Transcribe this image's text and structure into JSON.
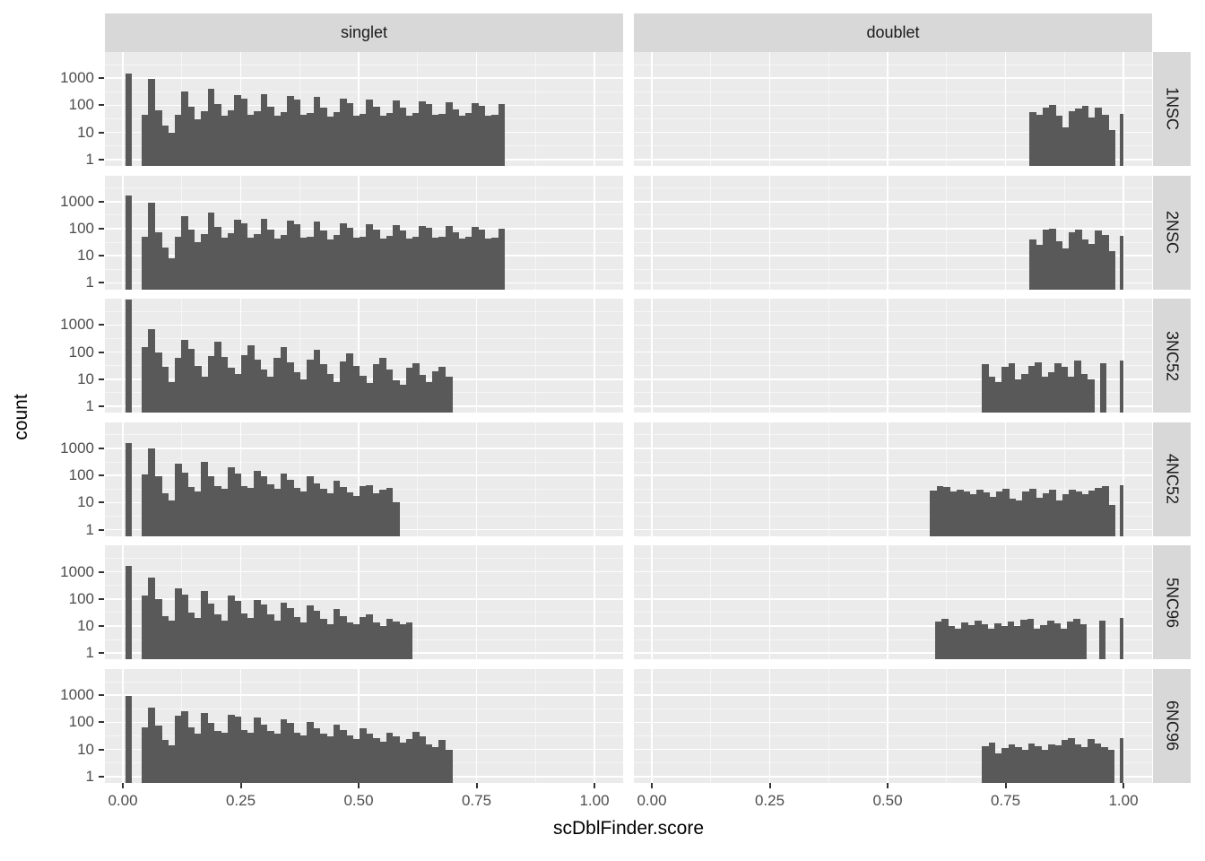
{
  "chart_data": {
    "type": "bar",
    "subtype": "faceted-histogram-log-y",
    "title": "",
    "xlabel": "scDblFinder.score",
    "ylabel": "count",
    "x_tick_labels": [
      "0.00",
      "0.25",
      "0.50",
      "0.75",
      "1.00"
    ],
    "x_tick_values": [
      0,
      0.25,
      0.5,
      0.75,
      1.0
    ],
    "y_tick_labels": [
      "1000",
      "100",
      "10",
      "1"
    ],
    "y_tick_values": [
      1000,
      100,
      10,
      1
    ],
    "y_scale": "log10",
    "grid": "on",
    "legend": "none",
    "col_facets": [
      "singlet",
      "doublet"
    ],
    "row_facets": [
      "1NSC",
      "2NSC",
      "3NC52",
      "4NC52",
      "5NC96",
      "6NC96"
    ],
    "bar_color": "#595959",
    "panel_bg": "#EBEBEB",
    "strip_bg": "#D8D8D8",
    "bin_width": 0.014,
    "panels": [
      {
        "row": "1NSC",
        "col": "singlet",
        "start": 0.04,
        "values": [
          45,
          930,
          65,
          18,
          10,
          45,
          330,
          90,
          30,
          60,
          420,
          110,
          40,
          65,
          230,
          170,
          45,
          60,
          250,
          90,
          40,
          55,
          220,
          160,
          45,
          50,
          200,
          80,
          38,
          55,
          170,
          120,
          42,
          48,
          160,
          90,
          40,
          52,
          150,
          80,
          42,
          50,
          140,
          110,
          45,
          48,
          130,
          70,
          40,
          50,
          120,
          95,
          42,
          46,
          110
        ],
        "extra_bars": [
          {
            "x": 0.006,
            "w": 0.013,
            "count": 1450
          }
        ]
      },
      {
        "row": "1NSC",
        "col": "doublet",
        "start": 0.8,
        "values": [
          55,
          45,
          85,
          100,
          40,
          15,
          60,
          75,
          95,
          35,
          80,
          45,
          12
        ],
        "extra_bars": [
          {
            "x": 0.993,
            "w": 0.007,
            "count": 48
          }
        ]
      },
      {
        "row": "2NSC",
        "col": "singlet",
        "start": 0.04,
        "values": [
          50,
          900,
          75,
          20,
          8,
          50,
          300,
          95,
          32,
          65,
          380,
          120,
          45,
          70,
          210,
          160,
          48,
          65,
          230,
          95,
          42,
          58,
          200,
          150,
          48,
          52,
          190,
          85,
          40,
          58,
          160,
          110,
          45,
          50,
          150,
          95,
          42,
          54,
          140,
          85,
          44,
          52,
          130,
          105,
          46,
          50,
          125,
          75,
          42,
          52,
          115,
          90,
          44,
          48,
          100
        ],
        "extra_bars": [
          {
            "x": 0.006,
            "w": 0.013,
            "count": 1700
          }
        ]
      },
      {
        "row": "2NSC",
        "col": "doublet",
        "start": 0.8,
        "values": [
          40,
          25,
          90,
          100,
          35,
          18,
          75,
          95,
          40,
          28,
          85,
          60,
          15
        ],
        "extra_bars": [
          {
            "x": 0.993,
            "w": 0.007,
            "count": 55
          }
        ]
      },
      {
        "row": "3NC52",
        "col": "singlet",
        "start": 0.04,
        "values": [
          150,
          700,
          95,
          28,
          8,
          60,
          280,
          130,
          32,
          12,
          70,
          250,
          65,
          26,
          16,
          80,
          180,
          52,
          22,
          12,
          62,
          150,
          42,
          18,
          10,
          52,
          120,
          36,
          16,
          8,
          46,
          90,
          30,
          13,
          7,
          36,
          62,
          22,
          9,
          6,
          26,
          40,
          14,
          8,
          20,
          28,
          12
        ],
        "extra_bars": [
          {
            "x": 0.006,
            "w": 0.013,
            "count": 9000
          }
        ]
      },
      {
        "row": "3NC52",
        "col": "doublet",
        "start": 0.7,
        "values": [
          35,
          12,
          8,
          28,
          38,
          10,
          15,
          32,
          42,
          12,
          18,
          38,
          28,
          12,
          48,
          15,
          10
        ],
        "extra_bars": [
          {
            "x": 0.95,
            "w": 0.014,
            "count": 38
          },
          {
            "x": 0.993,
            "w": 0.007,
            "count": 50
          }
        ]
      },
      {
        "row": "4NC52",
        "col": "singlet",
        "start": 0.04,
        "values": [
          110,
          1000,
          95,
          22,
          12,
          280,
          130,
          38,
          26,
          330,
          95,
          42,
          32,
          200,
          120,
          42,
          36,
          150,
          92,
          46,
          32,
          120,
          72,
          36,
          26,
          92,
          52,
          32,
          22,
          62,
          38,
          24,
          18,
          40,
          45,
          22,
          30,
          35,
          10
        ],
        "extra_bars": [
          {
            "x": 0.006,
            "w": 0.013,
            "count": 1600
          }
        ]
      },
      {
        "row": "4NC52",
        "col": "doublet",
        "start": 0.59,
        "values": [
          28,
          42,
          38,
          25,
          30,
          26,
          20,
          30,
          24,
          16,
          26,
          32,
          14,
          12,
          26,
          32,
          15,
          22,
          30,
          12,
          20,
          30,
          25,
          20,
          28,
          35,
          42,
          8
        ],
        "extra_bars": [
          {
            "x": 0.993,
            "w": 0.007,
            "count": 45
          }
        ]
      },
      {
        "row": "5NC96",
        "col": "singlet",
        "start": 0.04,
        "values": [
          130,
          600,
          95,
          24,
          16,
          250,
          140,
          32,
          20,
          200,
          65,
          27,
          16,
          130,
          82,
          30,
          20,
          92,
          62,
          27,
          16,
          72,
          46,
          22,
          14,
          56,
          36,
          18,
          12,
          42,
          24,
          14,
          12,
          22,
          26,
          14,
          10,
          18,
          15,
          12,
          14
        ],
        "extra_bars": [
          {
            "x": 0.006,
            "w": 0.013,
            "count": 1700
          }
        ]
      },
      {
        "row": "5NC96",
        "col": "doublet",
        "start": 0.6,
        "values": [
          15,
          18,
          10,
          8,
          14,
          11,
          16,
          12,
          8,
          13,
          10,
          15,
          10,
          17,
          19,
          8,
          11,
          16,
          13,
          8,
          15,
          18,
          12
        ],
        "extra_bars": [
          {
            "x": 0.948,
            "w": 0.014,
            "count": 16
          },
          {
            "x": 0.993,
            "w": 0.007,
            "count": 20
          }
        ]
      },
      {
        "row": "6NC96",
        "col": "singlet",
        "start": 0.04,
        "values": [
          65,
          350,
          75,
          22,
          14,
          180,
          250,
          65,
          38,
          220,
          95,
          48,
          42,
          185,
          160,
          52,
          42,
          150,
          85,
          48,
          38,
          130,
          92,
          42,
          32,
          105,
          62,
          38,
          30,
          82,
          52,
          32,
          24,
          62,
          38,
          26,
          20,
          42,
          30,
          18,
          24,
          45,
          30,
          15,
          12,
          22,
          10
        ],
        "extra_bars": [
          {
            "x": 0.006,
            "w": 0.013,
            "count": 950
          }
        ]
      },
      {
        "row": "6NC96",
        "col": "doublet",
        "start": 0.7,
        "values": [
          13,
          18,
          7,
          11,
          15,
          12,
          10,
          17,
          13,
          10,
          15,
          14,
          22,
          26,
          15,
          12,
          24,
          17,
          12,
          10
        ],
        "extra_bars": [
          {
            "x": 0.993,
            "w": 0.007,
            "count": 26
          }
        ]
      }
    ]
  }
}
